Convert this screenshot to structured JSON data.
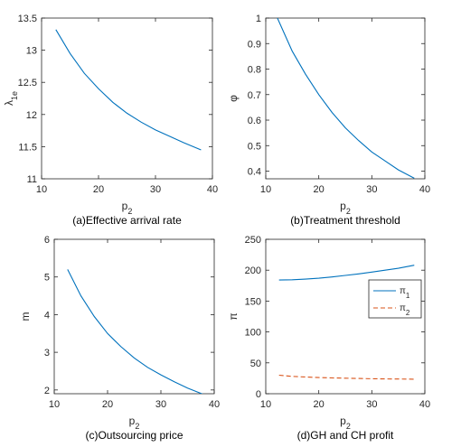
{
  "chart_data": [
    {
      "type": "line",
      "caption": "(a)Effective arrival rate",
      "xlabel": "p",
      "xlabel_sub": "2",
      "ylabel": "λ",
      "ylabel_sub": "1e",
      "xlim": [
        10,
        40
      ],
      "ylim": [
        11,
        13.5
      ],
      "xticks": [
        10,
        20,
        30,
        40
      ],
      "yticks": [
        11,
        11.5,
        12,
        12.5,
        13,
        13.5
      ],
      "ytick_labels": [
        "11",
        "11.5",
        "12",
        "12.5",
        "13",
        "13.5"
      ],
      "series": [
        {
          "color": "#0072bd",
          "dash": "",
          "x": [
            12.5,
            15,
            17.5,
            20,
            22.5,
            25,
            27.5,
            30,
            32.5,
            35,
            38
          ],
          "y": [
            13.32,
            12.95,
            12.64,
            12.4,
            12.19,
            12.02,
            11.88,
            11.76,
            11.66,
            11.56,
            11.45
          ]
        }
      ]
    },
    {
      "type": "line",
      "caption": "(b)Treatment threshold",
      "xlabel": "p",
      "xlabel_sub": "2",
      "ylabel": "φ",
      "ylabel_sub": "",
      "xlim": [
        10,
        40
      ],
      "ylim": [
        0.37,
        1
      ],
      "xticks": [
        10,
        20,
        30,
        40
      ],
      "yticks": [
        0.4,
        0.5,
        0.6,
        0.7,
        0.8,
        0.9,
        1
      ],
      "ytick_labels": [
        "0.4",
        "0.5",
        "0.6",
        "0.7",
        "0.8",
        "0.9",
        "1"
      ],
      "series": [
        {
          "color": "#0072bd",
          "dash": "",
          "x": [
            12.2,
            15,
            17.5,
            20,
            22.5,
            25,
            27.5,
            30,
            32.5,
            35,
            38
          ],
          "y": [
            1.0,
            0.87,
            0.78,
            0.7,
            0.63,
            0.57,
            0.52,
            0.475,
            0.44,
            0.405,
            0.372
          ]
        }
      ]
    },
    {
      "type": "line",
      "caption": "(c)Outsourcing price",
      "xlabel": "p",
      "xlabel_sub": "2",
      "ylabel": "m",
      "ylabel_sub": "",
      "xlim": [
        10,
        40
      ],
      "ylim": [
        1.9,
        6
      ],
      "xticks": [
        10,
        20,
        30,
        40
      ],
      "yticks": [
        2,
        3,
        4,
        5,
        6
      ],
      "ytick_labels": [
        "2",
        "3",
        "4",
        "5",
        "6"
      ],
      "series": [
        {
          "color": "#0072bd",
          "dash": "",
          "x": [
            12.5,
            15,
            17.5,
            20,
            22.5,
            25,
            27.5,
            30,
            32.5,
            35,
            38
          ],
          "y": [
            5.2,
            4.5,
            3.95,
            3.5,
            3.15,
            2.85,
            2.6,
            2.4,
            2.22,
            2.05,
            1.88
          ]
        }
      ]
    },
    {
      "type": "line",
      "caption": "(d)GH and CH profit",
      "xlabel": "p",
      "xlabel_sub": "2",
      "ylabel": "π",
      "ylabel_sub": "",
      "xlim": [
        10,
        40
      ],
      "ylim": [
        0,
        250
      ],
      "xticks": [
        10,
        20,
        30,
        40
      ],
      "yticks": [
        0,
        50,
        100,
        150,
        200,
        250
      ],
      "ytick_labels": [
        "0",
        "50",
        "100",
        "150",
        "200",
        "250"
      ],
      "legend": {
        "position": "right",
        "items": [
          {
            "label": "π",
            "sub": "1"
          },
          {
            "label": "π",
            "sub": "2"
          }
        ]
      },
      "series": [
        {
          "name": "π1",
          "color": "#0072bd",
          "dash": "",
          "x": [
            12.5,
            15,
            17.5,
            20,
            22.5,
            25,
            27.5,
            30,
            32.5,
            35,
            38
          ],
          "y": [
            184,
            184.5,
            185.5,
            187,
            189,
            191.5,
            194,
            197,
            200,
            203,
            208
          ]
        },
        {
          "name": "π2",
          "color": "#d95319",
          "dash": "5,3",
          "x": [
            12.5,
            15,
            17.5,
            20,
            22.5,
            25,
            27.5,
            30,
            32.5,
            35,
            38
          ],
          "y": [
            30,
            28,
            27,
            26.2,
            25.6,
            25.1,
            24.7,
            24.3,
            24,
            23.8,
            23.5
          ]
        }
      ]
    }
  ]
}
